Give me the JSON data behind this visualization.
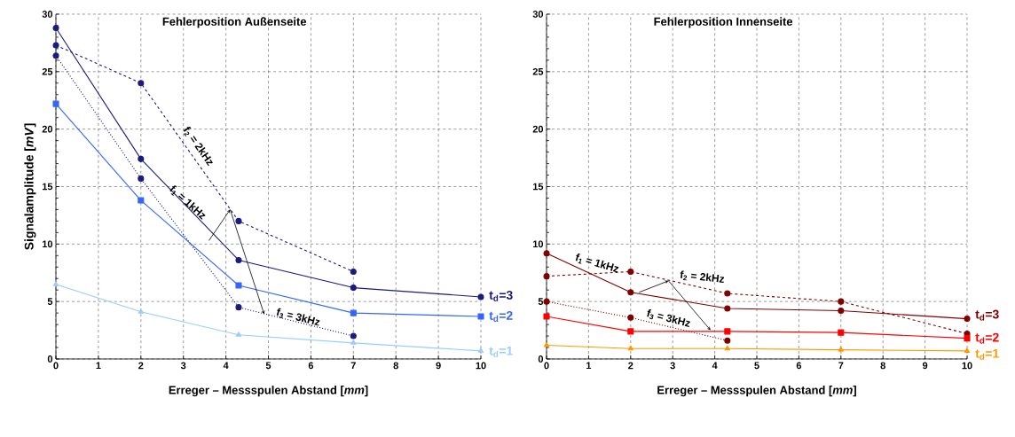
{
  "chart_data": [
    {
      "type": "line",
      "title": "Fehlerposition Außenseite",
      "xlabel": "Erreger – Messspulen Abstand [*mm*]",
      "ylabel": "Signalamplitude [*mV*]",
      "x": [
        0,
        2,
        4.3,
        7,
        10
      ],
      "xlim": [
        0,
        10
      ],
      "xticks": [
        0,
        1,
        2,
        3,
        4,
        5,
        6,
        7,
        8,
        9,
        10
      ],
      "ylim": [
        0,
        30
      ],
      "yticks": [
        0,
        5,
        10,
        15,
        20,
        25,
        30
      ],
      "grid": true,
      "annotations": [
        "f$_{2}$ = 2kHz",
        "f$_{1}$ = 1kHz",
        {
          "text": "f$_{3}$ = 3kHz",
          "x": 4.9,
          "y": 3.9
        }
      ],
      "series": [
        {
          "name": "t$_{d}$=3",
          "color": "#1a1a80",
          "marker": "circle",
          "line_style": "solid",
          "values": [
            28.8,
            17.4,
            8.6,
            6.2,
            5.4
          ]
        },
        {
          "color": "#1a1a80",
          "marker": "circle",
          "line_style": "dashed",
          "values": [
            27.3,
            24.0,
            12.0,
            7.6,
            null
          ]
        },
        {
          "color": "#1a1a80",
          "marker": "circle",
          "line_style": "dotted",
          "values": [
            26.4,
            15.7,
            4.5,
            2.0,
            null
          ]
        },
        {
          "name": "t$_{d}$=2",
          "color": "#3366ff",
          "marker": "square",
          "line_style": "solid",
          "values": [
            22.2,
            13.8,
            6.4,
            4.0,
            3.7
          ]
        },
        {
          "name": "t$_{d}$=1",
          "color": "#99ccff",
          "marker": "triangle",
          "line_style": "solid",
          "values": [
            6.5,
            4.1,
            2.1,
            1.4,
            0.7
          ]
        }
      ]
    },
    {
      "type": "line",
      "title": "Fehlerposition Innenseite",
      "xlabel": "Erreger – Messspulen Abstand [*mm*]",
      "x": [
        0,
        2,
        4.3,
        7,
        10
      ],
      "xlim": [
        0,
        10
      ],
      "xticks": [
        0,
        1,
        2,
        3,
        4,
        5,
        6,
        7,
        8,
        9,
        10
      ],
      "ylim": [
        0,
        30
      ],
      "yticks": [
        0,
        5,
        10,
        15,
        20,
        25,
        30
      ],
      "grid": true,
      "annotations": [
        "f$_{1}$ = 1kHz",
        {
          "text": "f$_{2}$ = 2kHz",
          "x": 2.9,
          "y": 6.8
        },
        {
          "text": "f$_{3}$ = 3kHz",
          "x": 3.9,
          "y": 2.5
        }
      ],
      "series": [
        {
          "name": "t$_{d}$=3",
          "color": "#800000",
          "marker": "circle",
          "line_style": "solid",
          "values": [
            9.2,
            5.8,
            4.4,
            4.2,
            3.5
          ]
        },
        {
          "color": "#800000",
          "marker": "circle",
          "line_style": "dashed",
          "values": [
            7.2,
            7.6,
            5.7,
            5.0,
            2.2
          ]
        },
        {
          "color": "#800000",
          "marker": "circle",
          "line_style": "dotted",
          "values": [
            5.0,
            3.6,
            1.6,
            null,
            null
          ]
        },
        {
          "name": "t$_{d}$=2",
          "color": "#ff0000",
          "marker": "square",
          "line_style": "solid",
          "values": [
            3.7,
            2.4,
            2.4,
            2.3,
            1.8
          ]
        },
        {
          "name": "t$_{d}$=1",
          "color": "#ff9900",
          "marker": "triangle",
          "line_style": "solid",
          "values": [
            1.2,
            0.9,
            0.9,
            0.8,
            0.7
          ]
        }
      ]
    }
  ]
}
